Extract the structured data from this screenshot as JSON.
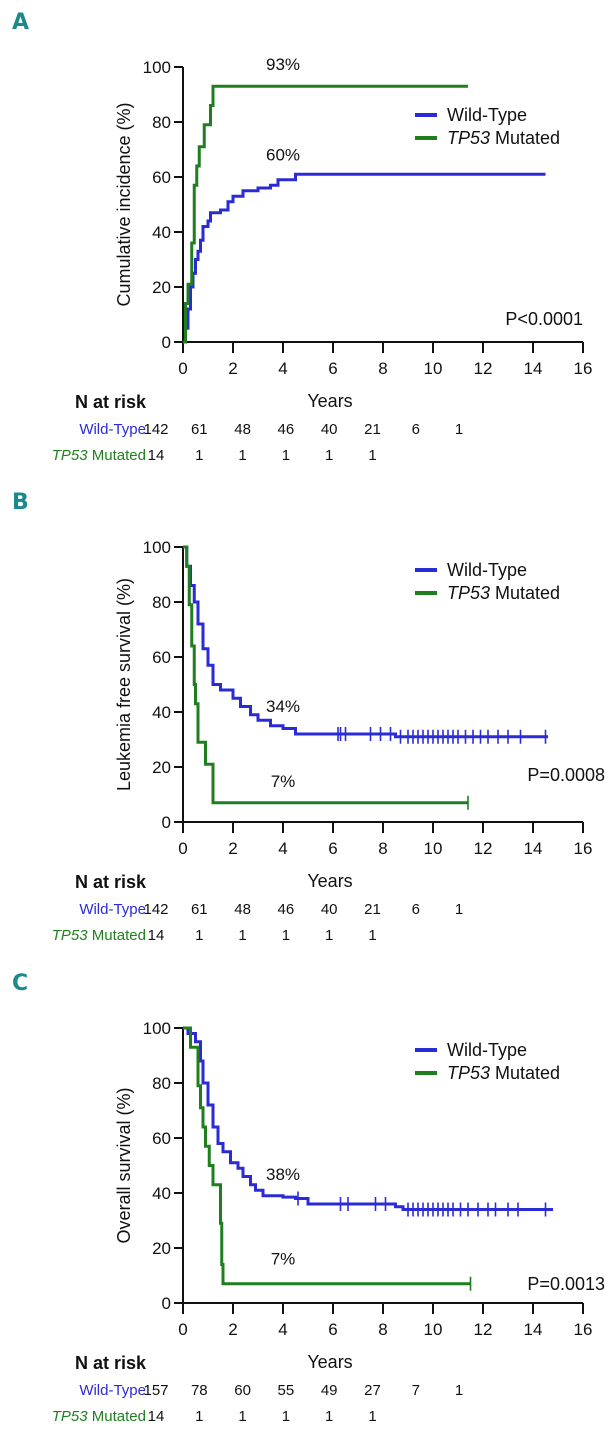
{
  "colors": {
    "wild_type": "#2a2ad6",
    "tp53": "#1f7f1f",
    "panel_letter": "#1b8a8c"
  },
  "chart_data": [
    {
      "panel": "A",
      "type": "line",
      "step": true,
      "ylabel": "Cumulative incidence (%)",
      "xlabel": "Years",
      "xlim": [
        0,
        16
      ],
      "ylim": [
        0,
        100
      ],
      "xticks": [
        "0",
        "2",
        "4",
        "6",
        "8",
        "10",
        "12",
        "14",
        "16"
      ],
      "yticks": [
        "0",
        "20",
        "40",
        "60",
        "80",
        "100"
      ],
      "legend": {
        "placement": "top-right",
        "entries": [
          {
            "prefix": "",
            "italic": "",
            "text": "Wild-Type"
          },
          {
            "prefix": "",
            "italic": "TP53",
            "text": " Mutated"
          }
        ]
      },
      "p_value": "P<0.0001",
      "annotations": [
        {
          "text": "93%",
          "x": 4,
          "y": 99
        },
        {
          "text": "60%",
          "x": 4,
          "y": 66
        }
      ],
      "series": [
        {
          "name": "Wild-Type",
          "points": [
            [
              0,
              0
            ],
            [
              0.1,
              5
            ],
            [
              0.2,
              12
            ],
            [
              0.3,
              20
            ],
            [
              0.4,
              25
            ],
            [
              0.5,
              30
            ],
            [
              0.6,
              33
            ],
            [
              0.7,
              37
            ],
            [
              0.8,
              42
            ],
            [
              1.0,
              44
            ],
            [
              1.1,
              47
            ],
            [
              1.5,
              48
            ],
            [
              1.8,
              51
            ],
            [
              2.0,
              53
            ],
            [
              2.4,
              55
            ],
            [
              3.0,
              56
            ],
            [
              3.5,
              57
            ],
            [
              3.8,
              59
            ],
            [
              4.5,
              61
            ],
            [
              14.5,
              61
            ]
          ],
          "censor": []
        },
        {
          "name": "TP53 Mutated",
          "points": [
            [
              0,
              0
            ],
            [
              0.1,
              14
            ],
            [
              0.2,
              21
            ],
            [
              0.35,
              36
            ],
            [
              0.45,
              57
            ],
            [
              0.55,
              64
            ],
            [
              0.65,
              71
            ],
            [
              0.85,
              79
            ],
            [
              1.1,
              86
            ],
            [
              1.2,
              93
            ],
            [
              11.4,
              93
            ]
          ],
          "censor": []
        }
      ],
      "risk_table": {
        "title": "N at risk",
        "rows": [
          {
            "label": "Wild-Type",
            "italic": "",
            "values": [
              "142",
              "61",
              "48",
              "46",
              "40",
              "21",
              "6",
              "1"
            ]
          },
          {
            "label": " Mutated",
            "italic": "TP53",
            "values": [
              "14",
              "1",
              "1",
              "1",
              "1",
              "1"
            ]
          }
        ]
      }
    },
    {
      "panel": "B",
      "type": "line",
      "step": true,
      "ylabel": "Leukemia free survival (%)",
      "xlabel": "Years",
      "xlim": [
        0,
        16
      ],
      "ylim": [
        0,
        100
      ],
      "xticks": [
        "0",
        "2",
        "4",
        "6",
        "8",
        "10",
        "12",
        "14",
        "16"
      ],
      "yticks": [
        "0",
        "20",
        "40",
        "60",
        "80",
        "100"
      ],
      "legend": {
        "placement": "top-right",
        "entries": [
          {
            "prefix": "",
            "italic": "",
            "text": "Wild-Type"
          },
          {
            "prefix": "",
            "italic": "TP53",
            "text": " Mutated"
          }
        ]
      },
      "p_value": "P=0.0008",
      "annotations": [
        {
          "text": "34%",
          "x": 4,
          "y": 40
        },
        {
          "text": "7%",
          "x": 4,
          "y": 12.7
        }
      ],
      "series": [
        {
          "name": "Wild-Type",
          "points": [
            [
              0,
              100
            ],
            [
              0.15,
              93
            ],
            [
              0.3,
              86
            ],
            [
              0.45,
              80
            ],
            [
              0.6,
              72
            ],
            [
              0.8,
              63
            ],
            [
              1.0,
              57
            ],
            [
              1.2,
              50
            ],
            [
              1.5,
              48
            ],
            [
              2.0,
              45
            ],
            [
              2.3,
              42
            ],
            [
              2.7,
              39
            ],
            [
              3.0,
              37
            ],
            [
              3.5,
              35
            ],
            [
              4.0,
              34
            ],
            [
              4.5,
              32
            ],
            [
              8.5,
              31
            ],
            [
              14.6,
              31
            ]
          ],
          "censor": [
            6.2,
            6.3,
            6.5,
            7.5,
            7.9,
            8.3,
            8.7,
            9.0,
            9.2,
            9.4,
            9.6,
            9.8,
            10.0,
            10.2,
            10.4,
            10.6,
            10.8,
            11.0,
            11.3,
            11.6,
            11.9,
            12.2,
            12.6,
            13.0,
            13.5,
            14.5
          ]
        },
        {
          "name": "TP53 Mutated",
          "points": [
            [
              0,
              100
            ],
            [
              0.15,
              93
            ],
            [
              0.25,
              79
            ],
            [
              0.35,
              64
            ],
            [
              0.45,
              50
            ],
            [
              0.5,
              43
            ],
            [
              0.6,
              29
            ],
            [
              0.9,
              21
            ],
            [
              1.2,
              7
            ],
            [
              11.4,
              7
            ]
          ],
          "censor": [
            11.4
          ]
        }
      ],
      "risk_table": {
        "title": "N at risk",
        "rows": [
          {
            "label": "Wild-Type",
            "italic": "",
            "values": [
              "142",
              "61",
              "48",
              "46",
              "40",
              "21",
              "6",
              "1"
            ]
          },
          {
            "label": " Mutated",
            "italic": "TP53",
            "values": [
              "14",
              "1",
              "1",
              "1",
              "1",
              "1"
            ]
          }
        ]
      }
    },
    {
      "panel": "C",
      "type": "line",
      "step": true,
      "ylabel": "Overall survival (%)",
      "xlabel": "Years",
      "xlim": [
        0,
        16
      ],
      "ylim": [
        0,
        100
      ],
      "xticks": [
        "0",
        "2",
        "4",
        "6",
        "8",
        "10",
        "12",
        "14",
        "16"
      ],
      "yticks": [
        "0",
        "20",
        "40",
        "60",
        "80",
        "100"
      ],
      "legend": {
        "placement": "top-right",
        "entries": [
          {
            "prefix": "",
            "italic": "",
            "text": "Wild-Type"
          },
          {
            "prefix": "",
            "italic": "TP53",
            "text": " Mutated"
          }
        ]
      },
      "p_value": "P=0.0013",
      "annotations": [
        {
          "text": "38%",
          "x": 4,
          "y": 44.7
        },
        {
          "text": "7%",
          "x": 4,
          "y": 14
        }
      ],
      "series": [
        {
          "name": "Wild-Type",
          "points": [
            [
              0,
              100
            ],
            [
              0.2,
              98
            ],
            [
              0.5,
              95
            ],
            [
              0.7,
              88
            ],
            [
              0.8,
              80
            ],
            [
              1.0,
              72
            ],
            [
              1.2,
              64
            ],
            [
              1.4,
              58
            ],
            [
              1.6,
              55
            ],
            [
              1.9,
              51
            ],
            [
              2.2,
              49
            ],
            [
              2.4,
              46
            ],
            [
              2.7,
              43
            ],
            [
              2.9,
              41
            ],
            [
              3.2,
              39
            ],
            [
              4.0,
              38.5
            ],
            [
              4.5,
              38
            ],
            [
              5.0,
              36
            ],
            [
              8.5,
              35
            ],
            [
              8.8,
              34
            ],
            [
              14.8,
              34
            ]
          ],
          "censor": [
            4.6,
            6.3,
            6.6,
            7.7,
            8.1,
            9.0,
            9.2,
            9.4,
            9.6,
            9.8,
            10.0,
            10.2,
            10.4,
            10.6,
            10.8,
            11.1,
            11.4,
            11.8,
            12.2,
            12.5,
            13.0,
            13.4,
            14.5
          ]
        },
        {
          "name": "TP53 Mutated",
          "points": [
            [
              0,
              100
            ],
            [
              0.3,
              93
            ],
            [
              0.6,
              79
            ],
            [
              0.7,
              71
            ],
            [
              0.8,
              64
            ],
            [
              0.9,
              57
            ],
            [
              1.05,
              50
            ],
            [
              1.2,
              43
            ],
            [
              1.4,
              43
            ],
            [
              1.5,
              29
            ],
            [
              1.55,
              14
            ],
            [
              1.6,
              7
            ],
            [
              11.5,
              7
            ]
          ],
          "censor": [
            11.5
          ]
        }
      ],
      "risk_table": {
        "title": "N at risk",
        "rows": [
          {
            "label": "Wild-Type",
            "italic": "",
            "values": [
              "157",
              "78",
              "60",
              "55",
              "49",
              "27",
              "7",
              "1"
            ]
          },
          {
            "label": " Mutated",
            "italic": "TP53",
            "values": [
              "14",
              "1",
              "1",
              "1",
              "1",
              "1"
            ]
          }
        ]
      }
    }
  ]
}
